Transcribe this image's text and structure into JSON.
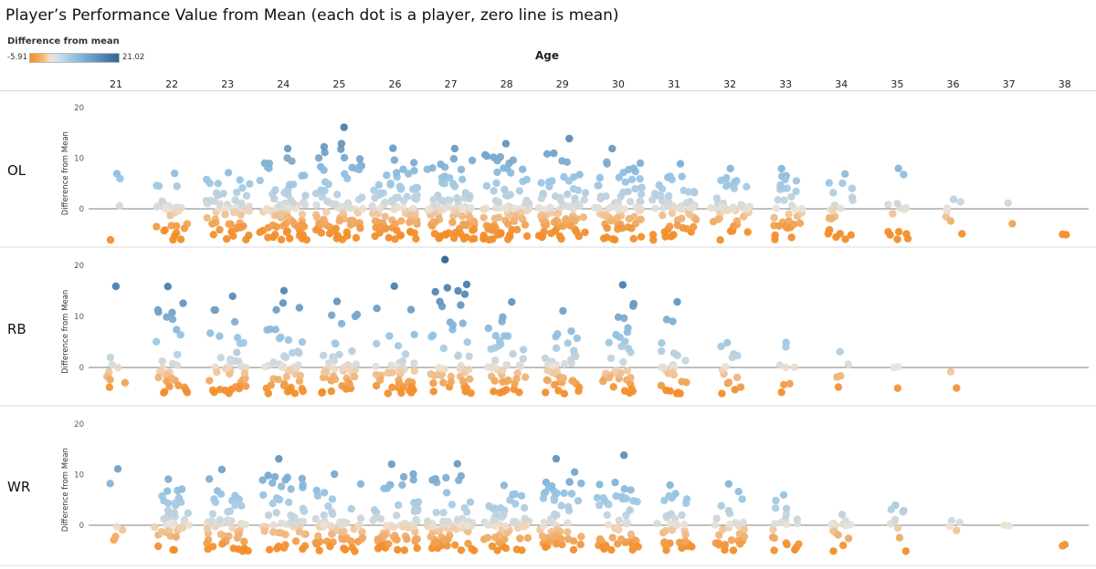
{
  "title": "Player’s Performance Value from Mean (each dot is a player, zero line is mean)",
  "legend": {
    "title": "Difference from mean",
    "min_label": "-5.91",
    "max_label": "21.02",
    "min": -5.91,
    "max": 21.02
  },
  "colors": {
    "negative": "#f28e2b",
    "neutral": "#e9e3dc",
    "positive": "#2f6496",
    "zero_line": "#7f7f7f",
    "separator": "#d9d9d9"
  },
  "chart_data": {
    "type": "scatter",
    "title": "Player’s Performance Value from Mean (each dot is a player, zero line is mean)",
    "column_title": "Age",
    "ylabel": "Difference from Mean",
    "ylim": [
      -6,
      20
    ],
    "y_ticks": [
      0,
      10,
      20
    ],
    "categories": [
      "21",
      "22",
      "23",
      "24",
      "25",
      "26",
      "27",
      "28",
      "29",
      "30",
      "31",
      "32",
      "33",
      "34",
      "35",
      "36",
      "37",
      "38"
    ],
    "panels": [
      {
        "name": "OL",
        "top_values": [
          7,
          7,
          7,
          12,
          16,
          12,
          12,
          13,
          14,
          12,
          9,
          8,
          8,
          7,
          8,
          2,
          1,
          -5
        ],
        "min_values": [
          -6,
          -6,
          -6,
          -6,
          -6,
          -6,
          -6,
          -6,
          -6,
          -6,
          -6,
          -6,
          -6,
          -6,
          -6,
          -5,
          -3,
          -5
        ],
        "density": [
          4,
          30,
          55,
          70,
          75,
          80,
          85,
          80,
          75,
          70,
          55,
          45,
          35,
          22,
          14,
          8,
          2,
          2
        ]
      },
      {
        "name": "RB",
        "top_values": [
          16,
          16,
          14,
          15,
          13,
          16,
          21,
          13,
          11,
          16,
          13,
          5,
          5,
          3,
          0,
          -1,
          null,
          null
        ],
        "min_values": [
          -4,
          -5,
          -5,
          -5,
          -5,
          -5,
          -5,
          -5,
          -5,
          -5,
          -5,
          -5,
          -5,
          -4,
          -4,
          -4,
          null,
          null
        ],
        "density": [
          10,
          30,
          40,
          45,
          42,
          45,
          48,
          42,
          40,
          35,
          25,
          14,
          8,
          5,
          3,
          2,
          0,
          0
        ]
      },
      {
        "name": "WR",
        "top_values": [
          11,
          9,
          11,
          13,
          10,
          12,
          12,
          8,
          13,
          14,
          8,
          8,
          6,
          2,
          4,
          1,
          0,
          -4
        ],
        "min_values": [
          -3,
          -5,
          -5,
          -5,
          -5,
          -5,
          -5,
          -5,
          -5,
          -5,
          -5,
          -5,
          -5,
          -5,
          -5,
          -1,
          0,
          -4
        ],
        "density": [
          6,
          38,
          50,
          55,
          60,
          65,
          65,
          58,
          55,
          50,
          40,
          30,
          22,
          15,
          10,
          4,
          1,
          1
        ]
      }
    ],
    "grid": false,
    "legend_position": "top-left"
  }
}
